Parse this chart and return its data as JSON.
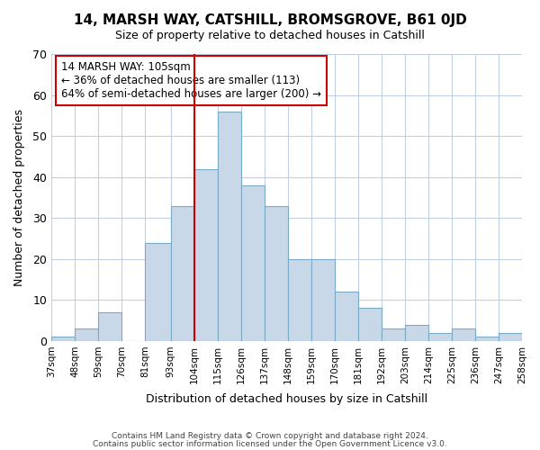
{
  "title": "14, MARSH WAY, CATSHILL, BROMSGROVE, B61 0JD",
  "subtitle": "Size of property relative to detached houses in Catshill",
  "xlabel": "Distribution of detached houses by size in Catshill",
  "ylabel": "Number of detached properties",
  "bar_edges": [
    37,
    48,
    59,
    70,
    81,
    93,
    104,
    115,
    126,
    137,
    148,
    159,
    170,
    181,
    192,
    203,
    214,
    225,
    236,
    247,
    258
  ],
  "bar_heights": [
    1,
    3,
    7,
    0,
    24,
    33,
    42,
    56,
    38,
    33,
    20,
    20,
    12,
    8,
    3,
    4,
    2,
    3,
    1,
    2
  ],
  "bar_color": "#c8d8e8",
  "bar_edge_color": "#7aaac8",
  "vline_x": 104,
  "vline_color": "#cc0000",
  "ylim": [
    0,
    70
  ],
  "tick_labels": [
    "37sqm",
    "48sqm",
    "59sqm",
    "70sqm",
    "81sqm",
    "93sqm",
    "104sqm",
    "115sqm",
    "126sqm",
    "137sqm",
    "148sqm",
    "159sqm",
    "170sqm",
    "181sqm",
    "192sqm",
    "203sqm",
    "214sqm",
    "225sqm",
    "236sqm",
    "247sqm",
    "258sqm"
  ],
  "annotation_title": "14 MARSH WAY: 105sqm",
  "annotation_line1": "← 36% of detached houses are smaller (113)",
  "annotation_line2": "64% of semi-detached houses are larger (200) →",
  "annotation_box_color": "#ffffff",
  "annotation_box_edge": "#cc0000",
  "footnote1": "Contains HM Land Registry data © Crown copyright and database right 2024.",
  "footnote2": "Contains public sector information licensed under the Open Government Licence v3.0.",
  "background_color": "#ffffff",
  "grid_color": "#c0d0e0"
}
